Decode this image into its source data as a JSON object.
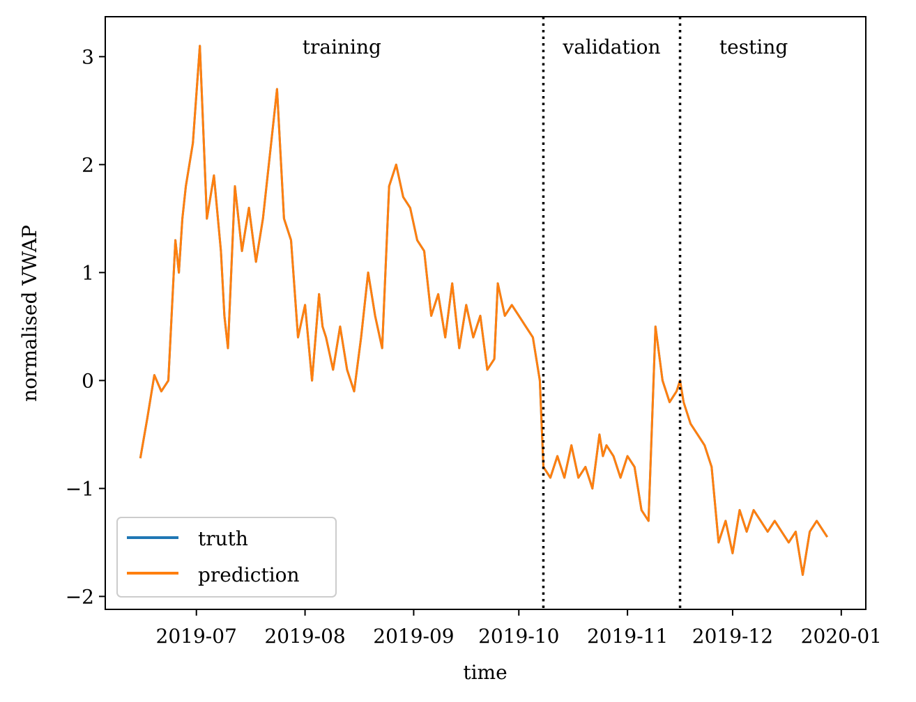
{
  "chart_data": {
    "type": "line",
    "xlabel": "time",
    "ylabel": "normalised VWAP",
    "xlim": [
      "2019-06-05",
      "2020-01-08"
    ],
    "ylim": [
      -2.12,
      3.37
    ],
    "x_ticks": [
      "2019-07",
      "2019-08",
      "2019-09",
      "2019-10",
      "2019-11",
      "2019-12",
      "2020-01"
    ],
    "y_ticks": [
      3,
      2,
      1,
      0,
      -1,
      -2
    ],
    "y_tick_labels": [
      "3",
      "2",
      "1",
      "0",
      "−1",
      "−2"
    ],
    "split_lines": [
      {
        "date": "2019-10-08",
        "style": "dotted",
        "color": "#000000"
      },
      {
        "date": "2019-11-16",
        "style": "dotted",
        "color": "#000000"
      }
    ],
    "regions": [
      {
        "label": "training",
        "start": "2019-06-15",
        "end": "2019-10-08"
      },
      {
        "label": "validation",
        "start": "2019-10-08",
        "end": "2019-11-16"
      },
      {
        "label": "testing",
        "start": "2019-11-16",
        "end": "2019-12-28"
      }
    ],
    "legend": {
      "position": "lower-left"
    },
    "grid": false,
    "x": [
      "2019-06-15",
      "2019-06-17",
      "2019-06-19",
      "2019-06-21",
      "2019-06-23",
      "2019-06-25",
      "2019-06-26",
      "2019-06-27",
      "2019-06-28",
      "2019-06-30",
      "2019-07-02",
      "2019-07-04",
      "2019-07-06",
      "2019-07-08",
      "2019-07-09",
      "2019-07-10",
      "2019-07-12",
      "2019-07-14",
      "2019-07-16",
      "2019-07-18",
      "2019-07-20",
      "2019-07-22",
      "2019-07-24",
      "2019-07-26",
      "2019-07-28",
      "2019-07-30",
      "2019-08-01",
      "2019-08-03",
      "2019-08-05",
      "2019-08-06",
      "2019-08-07",
      "2019-08-09",
      "2019-08-11",
      "2019-08-13",
      "2019-08-15",
      "2019-08-17",
      "2019-08-19",
      "2019-08-21",
      "2019-08-23",
      "2019-08-25",
      "2019-08-27",
      "2019-08-29",
      "2019-08-31",
      "2019-09-02",
      "2019-09-04",
      "2019-09-06",
      "2019-09-08",
      "2019-09-10",
      "2019-09-12",
      "2019-09-14",
      "2019-09-16",
      "2019-09-18",
      "2019-09-20",
      "2019-09-22",
      "2019-09-24",
      "2019-09-25",
      "2019-09-27",
      "2019-09-29",
      "2019-10-01",
      "2019-10-03",
      "2019-10-05",
      "2019-10-07",
      "2019-10-08",
      "2019-10-10",
      "2019-10-12",
      "2019-10-14",
      "2019-10-16",
      "2019-10-18",
      "2019-10-20",
      "2019-10-22",
      "2019-10-24",
      "2019-10-25",
      "2019-10-26",
      "2019-10-28",
      "2019-10-30",
      "2019-11-01",
      "2019-11-03",
      "2019-11-05",
      "2019-11-07",
      "2019-11-09",
      "2019-11-11",
      "2019-11-13",
      "2019-11-15",
      "2019-11-16",
      "2019-11-17",
      "2019-11-19",
      "2019-11-21",
      "2019-11-23",
      "2019-11-25",
      "2019-11-27",
      "2019-11-29",
      "2019-12-01",
      "2019-12-03",
      "2019-12-05",
      "2019-12-07",
      "2019-12-09",
      "2019-12-11",
      "2019-12-13",
      "2019-12-15",
      "2019-12-17",
      "2019-12-19",
      "2019-12-21",
      "2019-12-23",
      "2019-12-25",
      "2019-12-27",
      "2019-12-28"
    ],
    "series": [
      {
        "name": "truth",
        "color": "#1f77b4",
        "values": [
          -0.72,
          -0.35,
          0.05,
          -0.1,
          0.0,
          1.3,
          1.0,
          1.5,
          1.8,
          2.2,
          3.1,
          1.5,
          1.9,
          1.2,
          0.6,
          0.3,
          1.8,
          1.2,
          1.6,
          1.1,
          1.5,
          2.1,
          2.7,
          1.5,
          1.3,
          0.4,
          0.7,
          0.0,
          0.8,
          0.5,
          0.4,
          0.1,
          0.5,
          0.1,
          -0.1,
          0.4,
          1.0,
          0.6,
          0.3,
          1.8,
          2.0,
          1.7,
          1.6,
          1.3,
          1.2,
          0.6,
          0.8,
          0.4,
          0.9,
          0.3,
          0.7,
          0.4,
          0.6,
          0.1,
          0.2,
          0.9,
          0.6,
          0.7,
          0.6,
          0.5,
          0.4,
          0.0,
          -0.8,
          -0.9,
          -0.7,
          -0.9,
          -0.6,
          -0.9,
          -0.8,
          -1.0,
          -0.5,
          -0.7,
          -0.6,
          -0.7,
          -0.9,
          -0.7,
          -0.8,
          -1.2,
          -1.3,
          0.5,
          0.0,
          -0.2,
          -0.1,
          0.0,
          -0.2,
          -0.4,
          -0.5,
          -0.6,
          -0.8,
          -1.5,
          -1.3,
          -1.6,
          -1.2,
          -1.4,
          -1.2,
          -1.3,
          -1.4,
          -1.3,
          -1.4,
          -1.5,
          -1.4,
          -1.8,
          -1.4,
          -1.3,
          -1.4,
          -1.45
        ]
      },
      {
        "name": "prediction",
        "color": "#ff7f0e",
        "values": [
          -0.72,
          -0.35,
          0.05,
          -0.1,
          0.0,
          1.3,
          1.0,
          1.5,
          1.8,
          2.2,
          3.1,
          1.5,
          1.9,
          1.2,
          0.6,
          0.3,
          1.8,
          1.2,
          1.6,
          1.1,
          1.5,
          2.1,
          2.7,
          1.5,
          1.3,
          0.4,
          0.7,
          0.0,
          0.8,
          0.5,
          0.4,
          0.1,
          0.5,
          0.1,
          -0.1,
          0.4,
          1.0,
          0.6,
          0.3,
          1.8,
          2.0,
          1.7,
          1.6,
          1.3,
          1.2,
          0.6,
          0.8,
          0.4,
          0.9,
          0.3,
          0.7,
          0.4,
          0.6,
          0.1,
          0.2,
          0.9,
          0.6,
          0.7,
          0.6,
          0.5,
          0.4,
          0.0,
          -0.8,
          -0.9,
          -0.7,
          -0.9,
          -0.6,
          -0.9,
          -0.8,
          -1.0,
          -0.5,
          -0.7,
          -0.6,
          -0.7,
          -0.9,
          -0.7,
          -0.8,
          -1.2,
          -1.3,
          0.5,
          0.0,
          -0.2,
          -0.1,
          0.0,
          -0.2,
          -0.4,
          -0.5,
          -0.6,
          -0.8,
          -1.5,
          -1.3,
          -1.6,
          -1.2,
          -1.4,
          -1.2,
          -1.3,
          -1.4,
          -1.3,
          -1.4,
          -1.5,
          -1.4,
          -1.8,
          -1.4,
          -1.3,
          -1.4,
          -1.45
        ]
      }
    ]
  }
}
